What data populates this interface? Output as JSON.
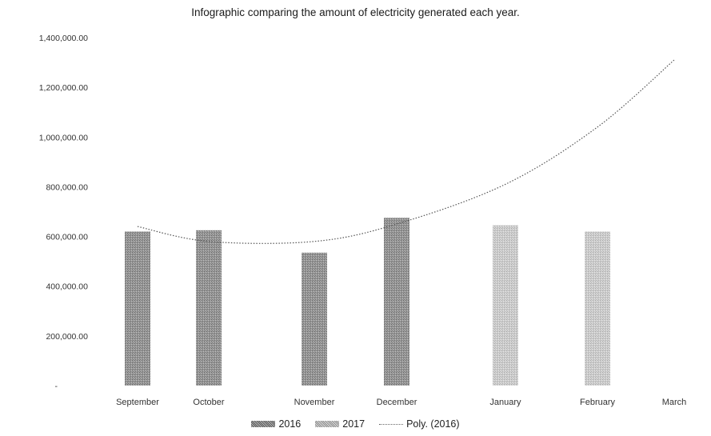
{
  "chart_data": {
    "type": "bar",
    "title": "Infographic  comparing the amount of electricity generated each year.",
    "categories": [
      "September",
      "October",
      "November",
      "December",
      "January",
      "February",
      "March"
    ],
    "series": [
      {
        "name": "2016",
        "values": [
          620000,
          625000,
          535000,
          675000,
          null,
          null,
          null
        ],
        "color": "#8c8c8c"
      },
      {
        "name": "2017",
        "values": [
          null,
          null,
          null,
          null,
          645000,
          620000,
          null
        ],
        "color": "#c8c8c8"
      }
    ],
    "trendline": {
      "name": "Poly. (2016)",
      "type": "polynomial",
      "points": [
        {
          "x": "September",
          "y": 640000
        },
        {
          "x": "October",
          "y": 580000
        },
        {
          "x": "November",
          "y": 580000
        },
        {
          "x": "December",
          "y": 650000
        },
        {
          "x": "January",
          "y": 810000
        },
        {
          "x": "February",
          "y": 1040000
        },
        {
          "x": "March",
          "y": 1310000
        }
      ]
    },
    "yticks": [
      "-",
      "200,000.00",
      "400,000.00",
      "600,000.00",
      "800,000.00",
      "1,000,000.00",
      "1,200,000.00",
      "1,400,000.00"
    ],
    "ylim": [
      0,
      1400000
    ],
    "grid": false,
    "legend_position": "bottom"
  },
  "legend": {
    "items": [
      "2016",
      "2017",
      "Poly. (2016)"
    ]
  }
}
